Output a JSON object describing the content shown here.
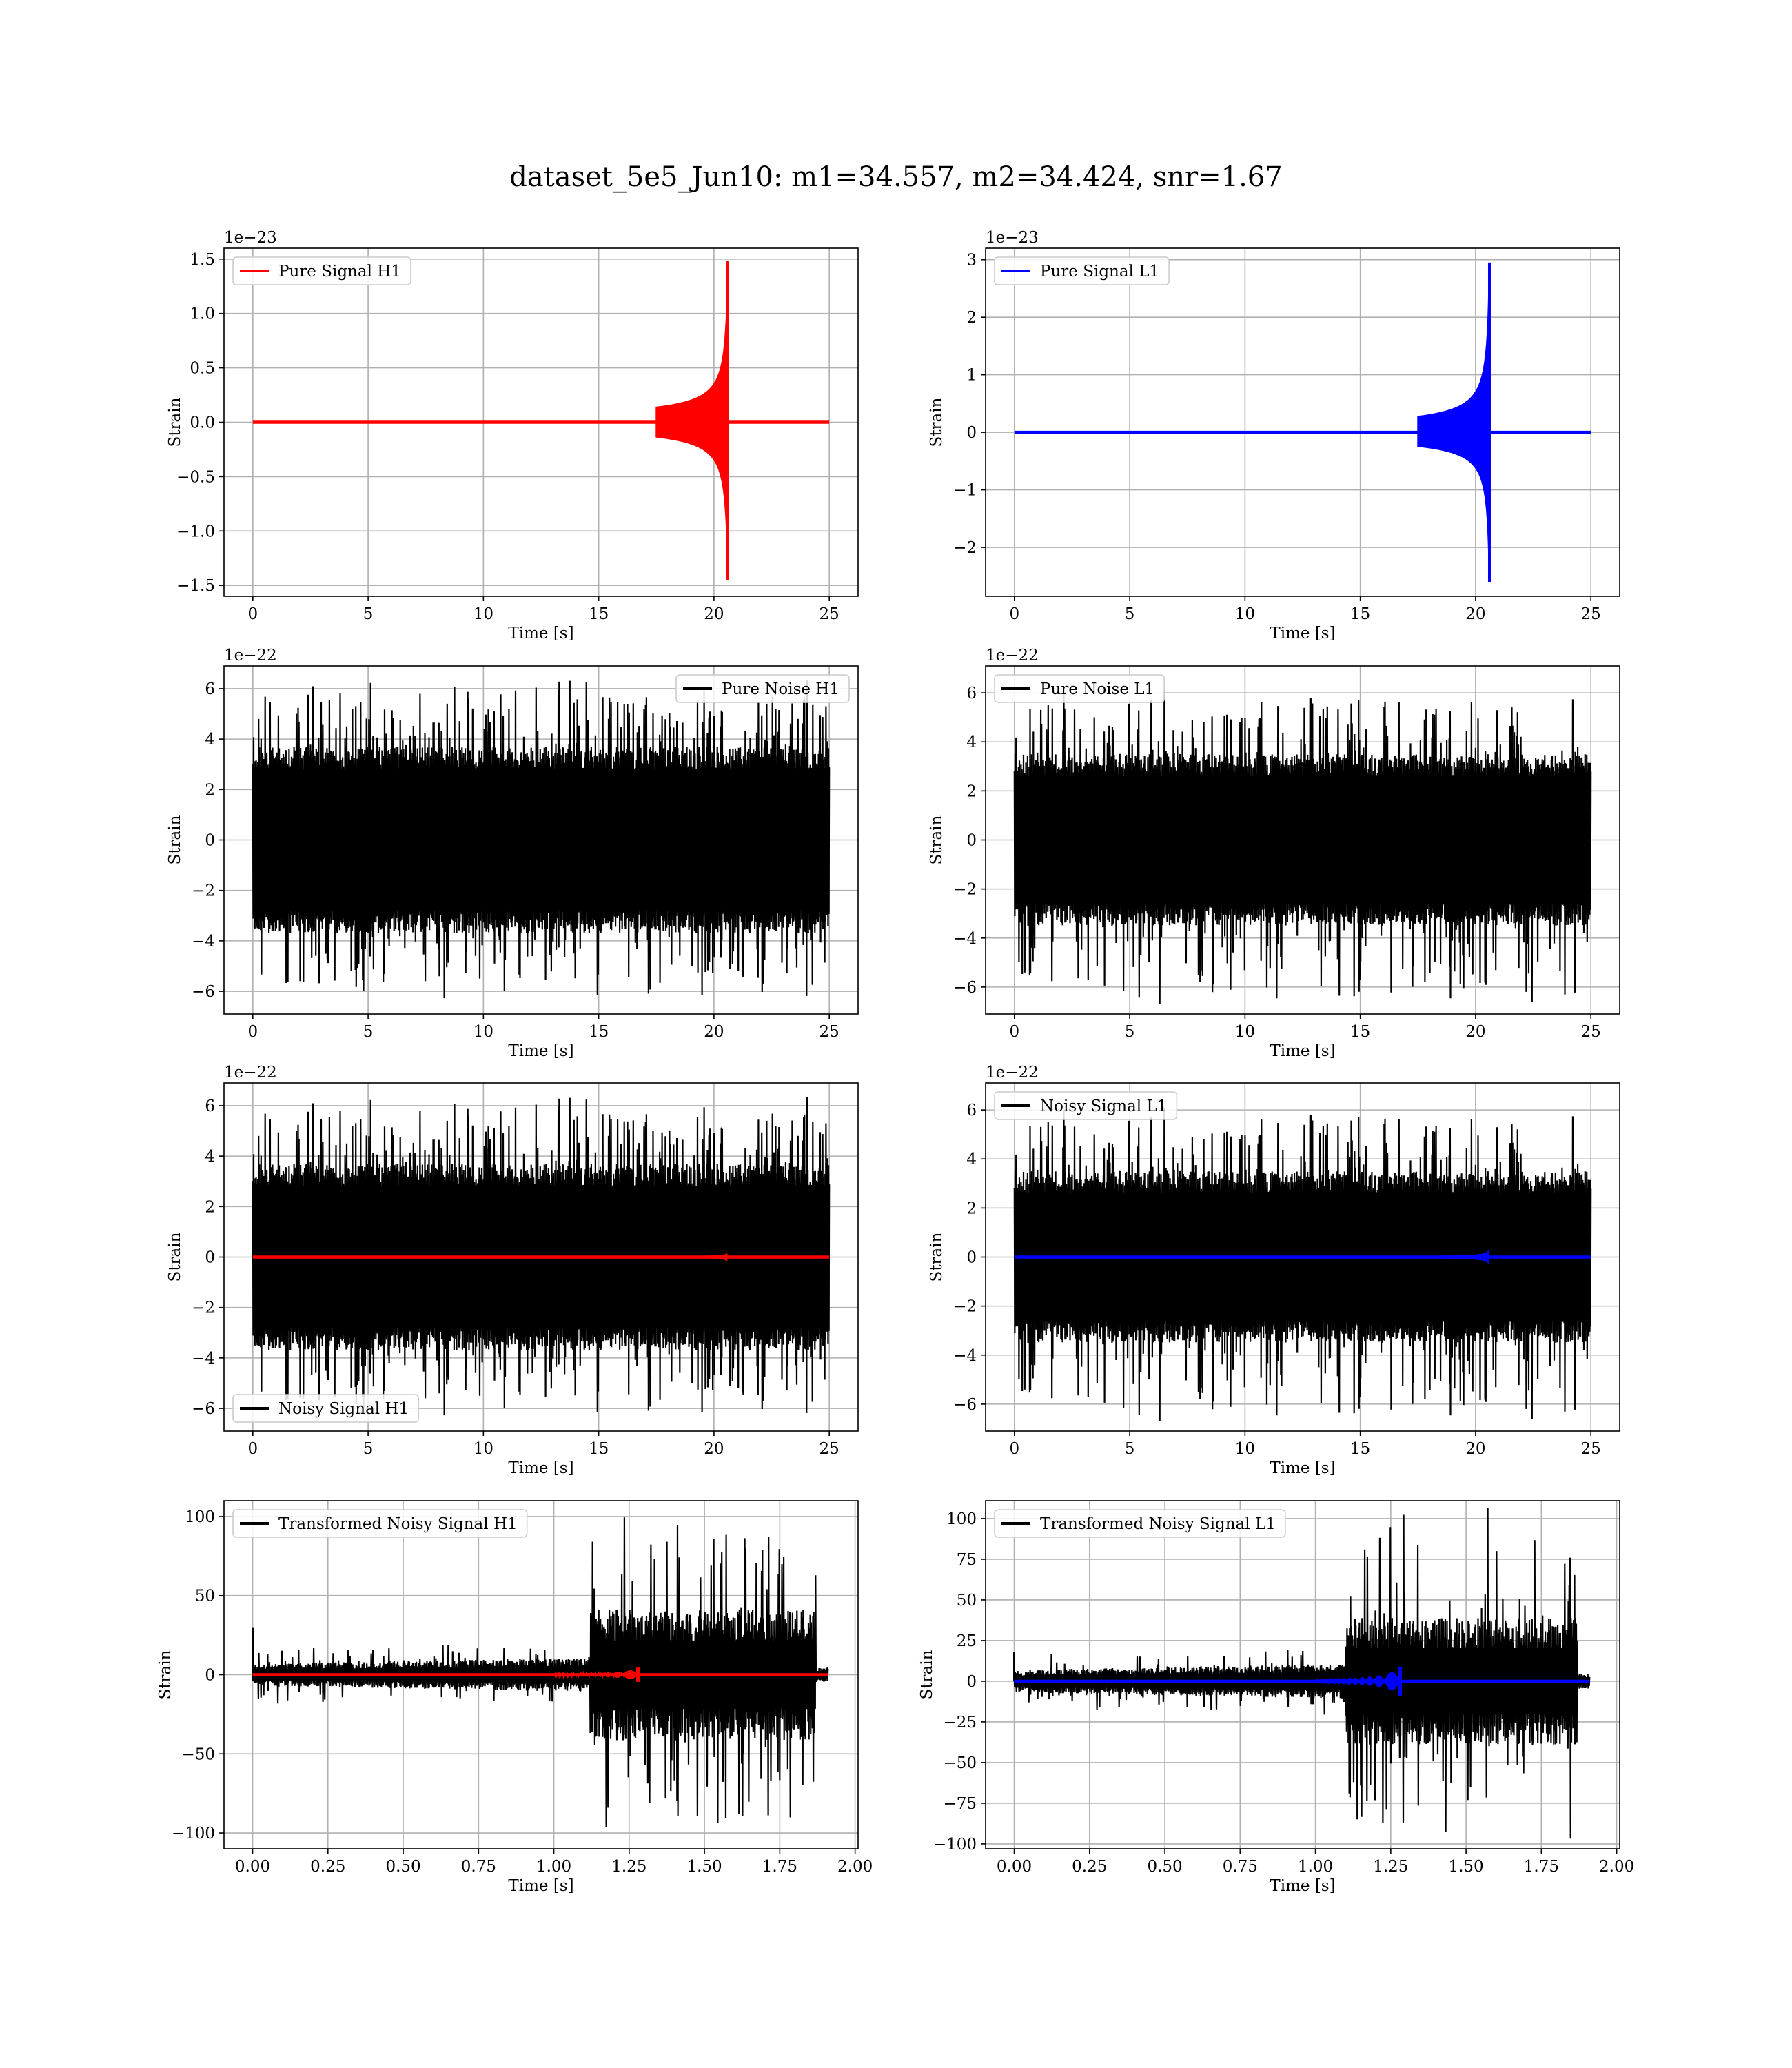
{
  "figure": {
    "suptitle": "dataset_5e5_Jun10: m1=34.557, m2=34.424, snr=1.67"
  },
  "colors": {
    "h1_signal": "#ff0000",
    "l1_signal": "#0000ff",
    "noise": "#000000",
    "grid": "#b0b0b0"
  },
  "chart_data": [
    {
      "id": "pure-signal-h1",
      "type": "line",
      "xlabel": "Time [s]",
      "ylabel": "Strain",
      "offset_text": "1e−23",
      "xlim": [
        -1.25,
        26.25
      ],
      "ylim": [
        -1.6,
        1.6
      ],
      "xticks": [
        0,
        5,
        10,
        15,
        20,
        25
      ],
      "xtick_labels": [
        "0",
        "5",
        "10",
        "15",
        "20",
        "25"
      ],
      "yticks": [
        -1.5,
        -1.0,
        -0.5,
        0.0,
        0.5,
        1.0,
        1.5
      ],
      "ytick_labels": [
        "−1.5",
        "−1.0",
        "−0.5",
        "0.0",
        "0.5",
        "1.0",
        "1.5"
      ],
      "legend": {
        "loc": "upper-left",
        "entries": [
          {
            "name": "Pure Signal H1",
            "color": "#ff0000"
          }
        ]
      },
      "series": [
        {
          "name": "Pure Signal H1",
          "kind": "chirp",
          "color": "#ff0000",
          "t_start": 0,
          "t_end": 25,
          "t_merger": 20.6,
          "peak_pos": 1.48,
          "peak_neg": -1.45
        }
      ]
    },
    {
      "id": "pure-signal-l1",
      "type": "line",
      "xlabel": "Time [s]",
      "ylabel": "Strain",
      "offset_text": "1e−23",
      "xlim": [
        -1.25,
        26.25
      ],
      "ylim": [
        -2.85,
        3.2
      ],
      "xticks": [
        0,
        5,
        10,
        15,
        20,
        25
      ],
      "xtick_labels": [
        "0",
        "5",
        "10",
        "15",
        "20",
        "25"
      ],
      "yticks": [
        -2,
        -1,
        0,
        1,
        2,
        3
      ],
      "ytick_labels": [
        "−2",
        "−1",
        "0",
        "1",
        "2",
        "3"
      ],
      "legend": {
        "loc": "upper-left",
        "entries": [
          {
            "name": "Pure Signal L1",
            "color": "#0000ff"
          }
        ]
      },
      "series": [
        {
          "name": "Pure Signal L1",
          "kind": "chirp",
          "color": "#0000ff",
          "t_start": 0,
          "t_end": 25,
          "t_merger": 20.6,
          "peak_pos": 2.95,
          "peak_neg": -2.6
        }
      ]
    },
    {
      "id": "pure-noise-h1",
      "type": "line",
      "xlabel": "Time [s]",
      "ylabel": "Strain",
      "offset_text": "1e−22",
      "xlim": [
        -1.25,
        26.25
      ],
      "ylim": [
        -6.9,
        6.9
      ],
      "xticks": [
        0,
        5,
        10,
        15,
        20,
        25
      ],
      "xtick_labels": [
        "0",
        "5",
        "10",
        "15",
        "20",
        "25"
      ],
      "yticks": [
        -6,
        -4,
        -2,
        0,
        2,
        4,
        6
      ],
      "ytick_labels": [
        "−6",
        "−4",
        "−2",
        "0",
        "2",
        "4",
        "6"
      ],
      "legend": {
        "loc": "upper-right",
        "entries": [
          {
            "name": "Pure Noise H1",
            "color": "#000000"
          }
        ]
      },
      "series": [
        {
          "name": "Pure Noise H1",
          "kind": "noise",
          "color": "#000000",
          "t_start": 0,
          "t_end": 25,
          "core": 2.8,
          "max_pos": 6.4,
          "max_neg": -6.4,
          "seed": 11
        }
      ]
    },
    {
      "id": "pure-noise-l1",
      "type": "line",
      "xlabel": "Time [s]",
      "ylabel": "Strain",
      "offset_text": "1e−22",
      "xlim": [
        -1.25,
        26.25
      ],
      "ylim": [
        -7.1,
        7.1
      ],
      "xticks": [
        0,
        5,
        10,
        15,
        20,
        25
      ],
      "xtick_labels": [
        "0",
        "5",
        "10",
        "15",
        "20",
        "25"
      ],
      "yticks": [
        -6,
        -4,
        -2,
        0,
        2,
        4,
        6
      ],
      "ytick_labels": [
        "−6",
        "−4",
        "−2",
        "0",
        "2",
        "4",
        "6"
      ],
      "legend": {
        "loc": "upper-left",
        "entries": [
          {
            "name": "Pure Noise L1",
            "color": "#000000"
          }
        ]
      },
      "series": [
        {
          "name": "Pure Noise L1",
          "kind": "noise",
          "color": "#000000",
          "t_start": 0,
          "t_end": 25,
          "core": 2.6,
          "max_pos": 6.2,
          "max_neg": -6.9,
          "seed": 23
        }
      ]
    },
    {
      "id": "noisy-signal-h1",
      "type": "line",
      "xlabel": "Time [s]",
      "ylabel": "Strain",
      "offset_text": "1e−22",
      "xlim": [
        -1.25,
        26.25
      ],
      "ylim": [
        -6.9,
        6.9
      ],
      "xticks": [
        0,
        5,
        10,
        15,
        20,
        25
      ],
      "xtick_labels": [
        "0",
        "5",
        "10",
        "15",
        "20",
        "25"
      ],
      "yticks": [
        -6,
        -4,
        -2,
        0,
        2,
        4,
        6
      ],
      "ytick_labels": [
        "−6",
        "−4",
        "−2",
        "0",
        "2",
        "4",
        "6"
      ],
      "legend": {
        "loc": "lower-left",
        "entries": [
          {
            "name": "Noisy Signal H1",
            "color": "#000000"
          }
        ]
      },
      "series": [
        {
          "name": "Noisy Signal H1",
          "kind": "noise",
          "color": "#000000",
          "t_start": 0,
          "t_end": 25,
          "core": 2.8,
          "max_pos": 6.4,
          "max_neg": -6.4,
          "seed": 11
        },
        {
          "name": "",
          "kind": "small-chirp",
          "color": "#ff0000",
          "t_start": 0,
          "t_end": 25,
          "t_merger": 20.6,
          "peak": 0.15
        }
      ]
    },
    {
      "id": "noisy-signal-l1",
      "type": "line",
      "xlabel": "Time [s]",
      "ylabel": "Strain",
      "offset_text": "1e−22",
      "xlim": [
        -1.25,
        26.25
      ],
      "ylim": [
        -7.1,
        7.1
      ],
      "xticks": [
        0,
        5,
        10,
        15,
        20,
        25
      ],
      "xtick_labels": [
        "0",
        "5",
        "10",
        "15",
        "20",
        "25"
      ],
      "yticks": [
        -6,
        -4,
        -2,
        0,
        2,
        4,
        6
      ],
      "ytick_labels": [
        "−6",
        "−4",
        "−2",
        "0",
        "2",
        "4",
        "6"
      ],
      "legend": {
        "loc": "upper-left",
        "entries": [
          {
            "name": "Noisy Signal L1",
            "color": "#000000"
          }
        ]
      },
      "series": [
        {
          "name": "Noisy Signal L1",
          "kind": "noise",
          "color": "#000000",
          "t_start": 0,
          "t_end": 25,
          "core": 2.6,
          "max_pos": 6.2,
          "max_neg": -6.9,
          "seed": 23
        },
        {
          "name": "",
          "kind": "small-chirp",
          "color": "#0000ff",
          "t_start": 0,
          "t_end": 25,
          "t_merger": 20.6,
          "peak": 0.3
        }
      ]
    },
    {
      "id": "transformed-noisy-signal-h1",
      "type": "line",
      "xlabel": "Time [s]",
      "ylabel": "Strain",
      "offset_text": "",
      "xlim": [
        -0.095,
        2.01
      ],
      "ylim": [
        -110,
        110
      ],
      "xticks": [
        0,
        0.25,
        0.5,
        0.75,
        1.0,
        1.25,
        1.5,
        1.75,
        2.0
      ],
      "xtick_labels": [
        "0.00",
        "0.25",
        "0.50",
        "0.75",
        "1.00",
        "1.25",
        "1.50",
        "1.75",
        "2.00"
      ],
      "yticks": [
        -100,
        -50,
        0,
        50,
        100
      ],
      "ytick_labels": [
        "−100",
        "−50",
        "0",
        "50",
        "100"
      ],
      "legend": {
        "loc": "upper-left",
        "entries": [
          {
            "name": "Transformed Noisy Signal H1",
            "color": "#000000"
          }
        ]
      },
      "series": [
        {
          "name": "Transformed Noisy Signal H1",
          "kind": "whitened",
          "color": "#000000",
          "t_start": 0,
          "t_end": 1.91,
          "t_jump": 1.12,
          "t_cut": 1.87,
          "low_core": 6,
          "high_core": 36,
          "max_pos": 105,
          "max_neg": -107,
          "initial_spike": 30,
          "seed": 37
        },
        {
          "name": "",
          "kind": "whitened-chirp",
          "color": "#ff0000",
          "t_start": 0,
          "t_end": 1.91,
          "t_merger": 1.28,
          "peak": 4.5
        }
      ]
    },
    {
      "id": "transformed-noisy-signal-l1",
      "type": "line",
      "xlabel": "Time [s]",
      "ylabel": "Strain",
      "offset_text": "",
      "xlim": [
        -0.095,
        2.01
      ],
      "ylim": [
        -103,
        111
      ],
      "xticks": [
        0,
        0.25,
        0.5,
        0.75,
        1.0,
        1.25,
        1.5,
        1.75,
        2.0
      ],
      "xtick_labels": [
        "0.00",
        "0.25",
        "0.50",
        "0.75",
        "1.00",
        "1.25",
        "1.50",
        "1.75",
        "2.00"
      ],
      "yticks": [
        -100,
        -75,
        -50,
        -25,
        0,
        25,
        50,
        75,
        100
      ],
      "ytick_labels": [
        "−100",
        "−75",
        "−50",
        "−25",
        "0",
        "25",
        "50",
        "75",
        "100"
      ],
      "legend": {
        "loc": "upper-left",
        "entries": [
          {
            "name": "Transformed Noisy Signal L1",
            "color": "#000000"
          }
        ]
      },
      "series": [
        {
          "name": "Transformed Noisy Signal L1",
          "kind": "whitened",
          "color": "#000000",
          "t_start": 0,
          "t_end": 1.91,
          "t_jump": 1.1,
          "t_cut": 1.87,
          "low_core": 6,
          "high_core": 34,
          "max_pos": 105,
          "max_neg": -94,
          "initial_spike": 18,
          "seed": 53
        },
        {
          "name": "",
          "kind": "whitened-chirp",
          "color": "#0000ff",
          "t_start": 0,
          "t_end": 1.91,
          "t_merger": 1.28,
          "peak": 9
        }
      ]
    }
  ]
}
